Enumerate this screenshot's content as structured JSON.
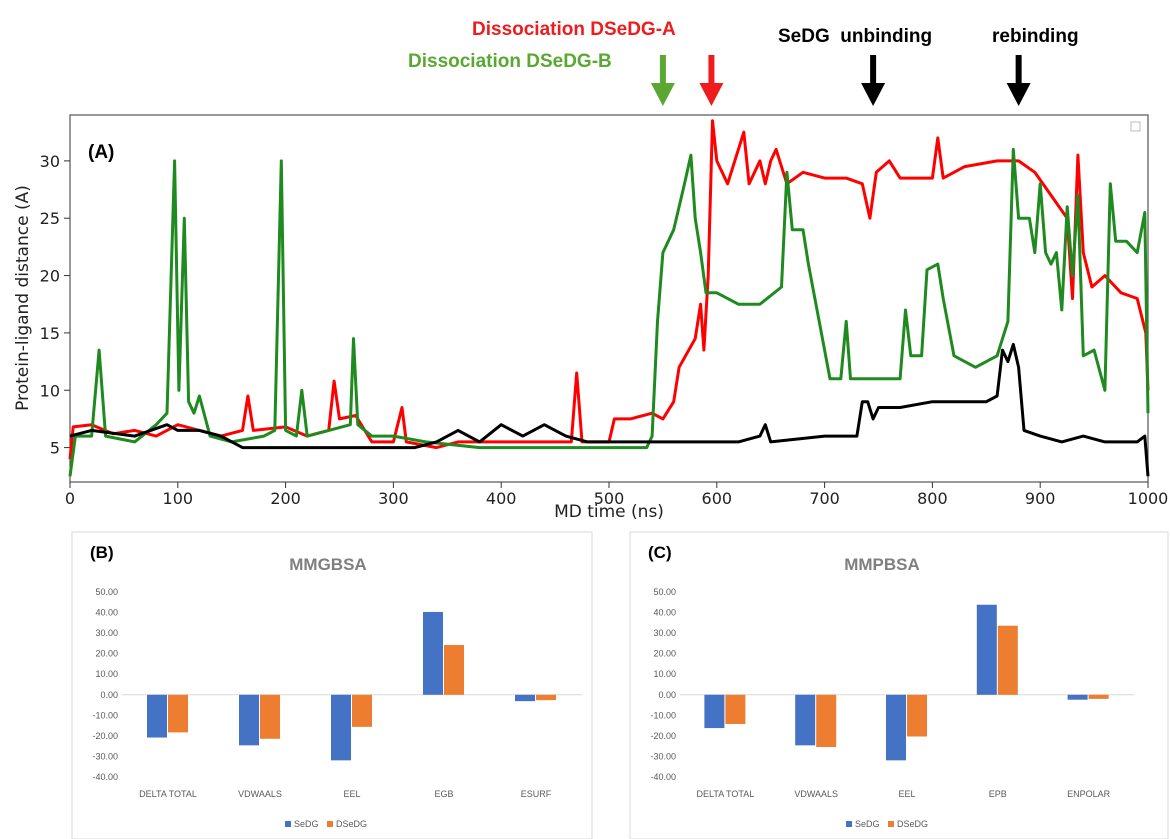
{
  "annotations": [
    {
      "text": "Dissociation DSeDG-A",
      "color": "#ee1c1c"
    },
    {
      "text": "Dissociation DSeDG-B",
      "color": "#5aa832"
    },
    {
      "text": "SeDG  unbinding",
      "color": "#000000"
    },
    {
      "text": "rebinding",
      "color": "#000000"
    }
  ],
  "chart_data": [
    {
      "type": "line",
      "panel_label": "(A)",
      "xlabel": "MD time (ns)",
      "ylabel": "Protein-ligand distance (A)",
      "xlim": [
        0,
        1000
      ],
      "ylim": [
        2,
        34
      ],
      "xticks": [
        0,
        100,
        200,
        300,
        400,
        500,
        600,
        700,
        800,
        900,
        1000
      ],
      "yticks": [
        5,
        10,
        15,
        20,
        25,
        30
      ],
      "arrows_at": [
        550,
        595,
        745,
        880
      ],
      "series": [
        {
          "color": "#ff0000",
          "points": [
            [
              0,
              4
            ],
            [
              3,
              6.8
            ],
            [
              20,
              7
            ],
            [
              40,
              6.2
            ],
            [
              60,
              6.5
            ],
            [
              80,
              6
            ],
            [
              100,
              7
            ],
            [
              120,
              6.5
            ],
            [
              140,
              6
            ],
            [
              160,
              6.5
            ],
            [
              165,
              9.5
            ],
            [
              170,
              6.5
            ],
            [
              200,
              6.8
            ],
            [
              220,
              6
            ],
            [
              240,
              6.5
            ],
            [
              245,
              10.8
            ],
            [
              250,
              7.5
            ],
            [
              265,
              7.8
            ],
            [
              280,
              5.5
            ],
            [
              300,
              5.5
            ],
            [
              308,
              8.5
            ],
            [
              312,
              5.5
            ],
            [
              340,
              5
            ],
            [
              360,
              5.5
            ],
            [
              400,
              5.5
            ],
            [
              440,
              5.5
            ],
            [
              465,
              5.5
            ],
            [
              470,
              11.5
            ],
            [
              475,
              5.5
            ],
            [
              500,
              5.5
            ],
            [
              505,
              7.5
            ],
            [
              520,
              7.5
            ],
            [
              540,
              8
            ],
            [
              550,
              7.5
            ],
            [
              560,
              9
            ],
            [
              565,
              12
            ],
            [
              580,
              14.5
            ],
            [
              585,
              17.5
            ],
            [
              588,
              13.5
            ],
            [
              592,
              20
            ],
            [
              596,
              33.5
            ],
            [
              600,
              30
            ],
            [
              610,
              28
            ],
            [
              625,
              32.5
            ],
            [
              630,
              28
            ],
            [
              640,
              30
            ],
            [
              645,
              28
            ],
            [
              650,
              30
            ],
            [
              655,
              31
            ],
            [
              665,
              28
            ],
            [
              680,
              29
            ],
            [
              700,
              28.5
            ],
            [
              720,
              28.5
            ],
            [
              735,
              28
            ],
            [
              742,
              25
            ],
            [
              748,
              29
            ],
            [
              760,
              30
            ],
            [
              770,
              28.5
            ],
            [
              790,
              28.5
            ],
            [
              800,
              28.5
            ],
            [
              805,
              32
            ],
            [
              810,
              28.5
            ],
            [
              830,
              29.5
            ],
            [
              860,
              30
            ],
            [
              880,
              30
            ],
            [
              895,
              29
            ],
            [
              910,
              27
            ],
            [
              925,
              25
            ],
            [
              930,
              18
            ],
            [
              935,
              30.5
            ],
            [
              940,
              22
            ],
            [
              948,
              19
            ],
            [
              960,
              20
            ],
            [
              975,
              18.5
            ],
            [
              990,
              18
            ],
            [
              998,
              15
            ],
            [
              1000,
              10
            ]
          ]
        },
        {
          "color": "#1f8a1f",
          "points": [
            [
              0,
              2.5
            ],
            [
              5,
              6
            ],
            [
              20,
              6
            ],
            [
              27,
              13.5
            ],
            [
              33,
              6
            ],
            [
              60,
              5.5
            ],
            [
              80,
              7
            ],
            [
              90,
              8
            ],
            [
              97,
              30
            ],
            [
              101,
              10
            ],
            [
              106,
              25
            ],
            [
              110,
              9
            ],
            [
              115,
              8
            ],
            [
              120,
              9.5
            ],
            [
              130,
              6
            ],
            [
              150,
              5.5
            ],
            [
              180,
              6
            ],
            [
              190,
              6.5
            ],
            [
              196,
              30
            ],
            [
              200,
              6.5
            ],
            [
              210,
              6
            ],
            [
              215,
              10
            ],
            [
              220,
              6
            ],
            [
              240,
              6.5
            ],
            [
              260,
              7
            ],
            [
              263,
              14.5
            ],
            [
              267,
              7
            ],
            [
              280,
              6
            ],
            [
              300,
              6
            ],
            [
              330,
              5.5
            ],
            [
              380,
              5
            ],
            [
              420,
              5
            ],
            [
              460,
              5
            ],
            [
              500,
              5
            ],
            [
              520,
              5
            ],
            [
              535,
              5
            ],
            [
              540,
              6
            ],
            [
              545,
              16
            ],
            [
              550,
              22
            ],
            [
              560,
              24
            ],
            [
              570,
              28
            ],
            [
              576,
              30.5
            ],
            [
              580,
              25
            ],
            [
              585,
              22
            ],
            [
              590,
              18.5
            ],
            [
              600,
              18.5
            ],
            [
              620,
              17.5
            ],
            [
              640,
              17.5
            ],
            [
              660,
              19
            ],
            [
              665,
              29
            ],
            [
              670,
              24
            ],
            [
              680,
              24
            ],
            [
              685,
              21
            ],
            [
              695,
              16
            ],
            [
              705,
              11
            ],
            [
              715,
              11
            ],
            [
              720,
              16
            ],
            [
              724,
              11
            ],
            [
              760,
              11
            ],
            [
              770,
              11
            ],
            [
              775,
              17
            ],
            [
              780,
              13
            ],
            [
              790,
              13
            ],
            [
              795,
              20.5
            ],
            [
              805,
              21
            ],
            [
              810,
              18
            ],
            [
              820,
              13
            ],
            [
              840,
              12
            ],
            [
              860,
              13
            ],
            [
              870,
              16
            ],
            [
              875,
              31
            ],
            [
              880,
              25
            ],
            [
              890,
              25
            ],
            [
              895,
              22
            ],
            [
              900,
              28
            ],
            [
              905,
              22
            ],
            [
              910,
              21
            ],
            [
              915,
              22
            ],
            [
              920,
              17
            ],
            [
              925,
              26
            ],
            [
              930,
              20
            ],
            [
              935,
              27
            ],
            [
              940,
              13
            ],
            [
              950,
              13.5
            ],
            [
              960,
              10
            ],
            [
              965,
              28
            ],
            [
              970,
              23
            ],
            [
              980,
              23
            ],
            [
              990,
              22
            ],
            [
              997,
              25.5
            ],
            [
              1000,
              8
            ]
          ]
        },
        {
          "color": "#000000",
          "points": [
            [
              0,
              6
            ],
            [
              20,
              6.5
            ],
            [
              60,
              6
            ],
            [
              90,
              7
            ],
            [
              100,
              6.5
            ],
            [
              120,
              6.5
            ],
            [
              140,
              6
            ],
            [
              160,
              5
            ],
            [
              200,
              5
            ],
            [
              260,
              5
            ],
            [
              320,
              5
            ],
            [
              340,
              5.5
            ],
            [
              360,
              6.5
            ],
            [
              380,
              5.5
            ],
            [
              400,
              7
            ],
            [
              420,
              6
            ],
            [
              440,
              7
            ],
            [
              460,
              6
            ],
            [
              480,
              5.5
            ],
            [
              500,
              5.5
            ],
            [
              540,
              5.5
            ],
            [
              580,
              5.5
            ],
            [
              620,
              5.5
            ],
            [
              640,
              6
            ],
            [
              645,
              7
            ],
            [
              650,
              5.5
            ],
            [
              700,
              6
            ],
            [
              730,
              6
            ],
            [
              735,
              9
            ],
            [
              740,
              9
            ],
            [
              745,
              7.5
            ],
            [
              750,
              8.5
            ],
            [
              770,
              8.5
            ],
            [
              800,
              9
            ],
            [
              830,
              9
            ],
            [
              850,
              9
            ],
            [
              860,
              9.5
            ],
            [
              865,
              13.5
            ],
            [
              870,
              12.5
            ],
            [
              875,
              14
            ],
            [
              880,
              12
            ],
            [
              885,
              6.5
            ],
            [
              900,
              6
            ],
            [
              920,
              5.5
            ],
            [
              940,
              6
            ],
            [
              960,
              5.5
            ],
            [
              990,
              5.5
            ],
            [
              997,
              6
            ],
            [
              1000,
              2.5
            ]
          ]
        }
      ]
    },
    {
      "type": "bar",
      "panel_label": "(B)",
      "title": "MMGBSA",
      "categories": [
        "DELTA TOTAL",
        "VDWAALS",
        "EEL",
        "EGB",
        "ESURF"
      ],
      "ylim": [
        -40,
        50
      ],
      "yticks": [
        "50.00",
        "40.00",
        "30.00",
        "20.00",
        "10.00",
        "0.00",
        "-10.00",
        "-20.00",
        "-30.00",
        "-40.00"
      ],
      "series": [
        {
          "name": "SeDG",
          "color": "#4472c4",
          "values": [
            -20.8,
            -24.6,
            -31.9,
            40.3,
            -3.1
          ]
        },
        {
          "name": "DSeDG",
          "color": "#ed7d31",
          "values": [
            -18.3,
            -21.4,
            -15.6,
            24.2,
            -2.6
          ]
        }
      ]
    },
    {
      "type": "bar",
      "panel_label": "(C)",
      "title": "MMPBSA",
      "categories": [
        "DELTA TOTAL",
        "VDWAALS",
        "EEL",
        "EPB",
        "ENPOLAR"
      ],
      "ylim": [
        -40,
        50
      ],
      "yticks": [
        "50.00",
        "40.00",
        "30.00",
        "20.00",
        "10.00",
        "0.00",
        "-10.00",
        "-20.00",
        "-30.00",
        "-40.00"
      ],
      "series": [
        {
          "name": "SeDG",
          "color": "#4472c4",
          "values": [
            -16.2,
            -24.6,
            -31.9,
            43.8,
            -2.4
          ]
        },
        {
          "name": "DSeDG",
          "color": "#ed7d31",
          "values": [
            -14.2,
            -25.4,
            -20.3,
            33.6,
            -2.0
          ]
        }
      ]
    }
  ]
}
